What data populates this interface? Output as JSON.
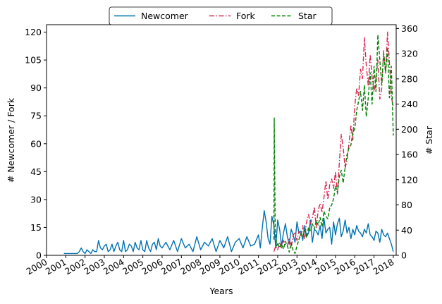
{
  "chart_data": {
    "type": "line",
    "xlabel": "Years",
    "ylabel_left": "# Newcomer / Fork",
    "ylabel_right": "# Star",
    "x_ticks": [
      "2000",
      "2001",
      "2002",
      "2003",
      "2004",
      "2005",
      "2006",
      "2007",
      "2008",
      "2009",
      "2010",
      "2011",
      "2012",
      "2013",
      "2014",
      "2015",
      "2016",
      "2017",
      "2018"
    ],
    "x_range": [
      2000,
      2018.15
    ],
    "ylim_left": [
      0,
      124
    ],
    "yticks_left": [
      0,
      15,
      30,
      45,
      60,
      75,
      90,
      105,
      120
    ],
    "ylim_right": [
      0,
      366
    ],
    "yticks_right": [
      0,
      40,
      80,
      120,
      160,
      200,
      240,
      280,
      320,
      360
    ],
    "legend_position": "top-center",
    "grid": false,
    "series": [
      {
        "name": "Newcomer",
        "axis": "left",
        "color": "#0072b2",
        "style": "solid",
        "x": [
          2000.9,
          2001.0,
          2001.2,
          2001.4,
          2001.6,
          2001.7,
          2001.8,
          2001.9,
          2002.0,
          2002.1,
          2002.2,
          2002.3,
          2002.4,
          2002.5,
          2002.6,
          2002.7,
          2002.8,
          2002.9,
          2003.0,
          2003.1,
          2003.2,
          2003.3,
          2003.4,
          2003.5,
          2003.6,
          2003.7,
          2003.8,
          2003.9,
          2004.0,
          2004.1,
          2004.2,
          2004.3,
          2004.4,
          2004.5,
          2004.6,
          2004.7,
          2004.8,
          2004.9,
          2005.0,
          2005.1,
          2005.2,
          2005.3,
          2005.4,
          2005.5,
          2005.6,
          2005.7,
          2005.8,
          2005.9,
          2006.0,
          2006.2,
          2006.4,
          2006.6,
          2006.8,
          2007.0,
          2007.2,
          2007.4,
          2007.6,
          2007.8,
          2008.0,
          2008.2,
          2008.4,
          2008.6,
          2008.8,
          2009.0,
          2009.2,
          2009.4,
          2009.6,
          2009.8,
          2010.0,
          2010.2,
          2010.4,
          2010.6,
          2010.8,
          2011.0,
          2011.1,
          2011.2,
          2011.3,
          2011.4,
          2011.5,
          2011.6,
          2011.7,
          2011.8,
          2011.9,
          2012.0,
          2012.1,
          2012.2,
          2012.3,
          2012.4,
          2012.5,
          2012.6,
          2012.7,
          2012.8,
          2012.9,
          2013.0,
          2013.1,
          2013.2,
          2013.3,
          2013.4,
          2013.5,
          2013.6,
          2013.7,
          2013.8,
          2013.9,
          2014.0,
          2014.1,
          2014.2,
          2014.3,
          2014.4,
          2014.5,
          2014.6,
          2014.7,
          2014.8,
          2014.9,
          2015.0,
          2015.1,
          2015.2,
          2015.3,
          2015.4,
          2015.5,
          2015.6,
          2015.7,
          2015.8,
          2015.9,
          2016.0,
          2016.1,
          2016.2,
          2016.3,
          2016.4,
          2016.5,
          2016.6,
          2016.7,
          2016.8,
          2016.9,
          2017.0,
          2017.1,
          2017.2,
          2017.3,
          2017.4,
          2017.5,
          2017.6,
          2017.7,
          2017.8,
          2017.9,
          2018.0
        ],
        "y": [
          1,
          1,
          1,
          1,
          1,
          2,
          4,
          2,
          1,
          3,
          2,
          1,
          3,
          2,
          2,
          8,
          4,
          3,
          5,
          6,
          2,
          3,
          6,
          2,
          5,
          7,
          3,
          2,
          8,
          2,
          3,
          6,
          5,
          2,
          7,
          4,
          3,
          8,
          3,
          2,
          8,
          4,
          2,
          6,
          7,
          3,
          9,
          5,
          4,
          7,
          3,
          8,
          2,
          9,
          4,
          6,
          2,
          10,
          3,
          7,
          5,
          9,
          2,
          8,
          4,
          10,
          2,
          7,
          9,
          4,
          10,
          5,
          6,
          11,
          4,
          15,
          24,
          18,
          9,
          6,
          21,
          16,
          4,
          19,
          14,
          5,
          12,
          17,
          10,
          6,
          14,
          11,
          7,
          18,
          12,
          13,
          8,
          16,
          10,
          12,
          19,
          7,
          14,
          13,
          11,
          16,
          9,
          20,
          12,
          14,
          15,
          6,
          18,
          11,
          17,
          20,
          10,
          13,
          19,
          12,
          15,
          9,
          14,
          11,
          16,
          13,
          12,
          10,
          14,
          12,
          17,
          11,
          10,
          8,
          13,
          12,
          7,
          14,
          11,
          10,
          12,
          9,
          6,
          2
        ],
        "values_note_unused": ""
      },
      {
        "name": "Fork",
        "axis": "left",
        "color": "#d62750",
        "style": "dashdot",
        "x": [
          2011.8,
          2011.9,
          2012.0,
          2012.1,
          2012.2,
          2012.3,
          2012.4,
          2012.5,
          2012.6,
          2012.7,
          2012.8,
          2012.9,
          2013.0,
          2013.1,
          2013.2,
          2013.3,
          2013.4,
          2013.5,
          2013.6,
          2013.7,
          2013.8,
          2013.9,
          2014.0,
          2014.1,
          2014.2,
          2014.3,
          2014.4,
          2014.5,
          2014.6,
          2014.7,
          2014.8,
          2014.9,
          2015.0,
          2015.1,
          2015.2,
          2015.3,
          2015.4,
          2015.5,
          2015.6,
          2015.7,
          2015.8,
          2015.9,
          2016.0,
          2016.1,
          2016.2,
          2016.3,
          2016.4,
          2016.5,
          2016.6,
          2016.7,
          2016.8,
          2016.9,
          2017.0,
          2017.1,
          2017.2,
          2017.3,
          2017.4,
          2017.5,
          2017.6,
          2017.7,
          2017.8,
          2017.9,
          2018.0
        ],
        "y": [
          2,
          5,
          3,
          7,
          4,
          8,
          6,
          5,
          9,
          4,
          11,
          12,
          8,
          13,
          10,
          16,
          9,
          18,
          22,
          17,
          20,
          26,
          15,
          24,
          28,
          23,
          31,
          40,
          30,
          38,
          41,
          36,
          45,
          33,
          50,
          65,
          58,
          47,
          51,
          60,
          70,
          62,
          80,
          90,
          86,
          100,
          95,
          117,
          102,
          91,
          108,
          96,
          88,
          95,
          105,
          84,
          90,
          110,
          98,
          120,
          104,
          85,
          80
        ]
      },
      {
        "name": "Star",
        "axis": "right",
        "color": "#008000",
        "style": "dashed",
        "x": [
          2011.8,
          2011.82,
          2011.87,
          2011.95,
          2012.0,
          2012.1,
          2012.2,
          2012.3,
          2012.4,
          2012.5,
          2012.6,
          2012.7,
          2012.8,
          2012.9,
          2013.0,
          2013.1,
          2013.2,
          2013.3,
          2013.4,
          2013.5,
          2013.6,
          2013.7,
          2013.8,
          2013.9,
          2014.0,
          2014.1,
          2014.2,
          2014.3,
          2014.4,
          2014.5,
          2014.6,
          2014.7,
          2014.8,
          2014.9,
          2015.0,
          2015.1,
          2015.2,
          2015.3,
          2015.4,
          2015.5,
          2015.6,
          2015.7,
          2015.8,
          2015.9,
          2016.0,
          2016.1,
          2016.2,
          2016.3,
          2016.4,
          2016.5,
          2016.6,
          2016.7,
          2016.8,
          2016.9,
          2017.0,
          2017.1,
          2017.2,
          2017.3,
          2017.4,
          2017.5,
          2017.6,
          2017.7,
          2017.8,
          2017.9,
          2018.0
        ],
        "y": [
          25,
          218,
          40,
          15,
          20,
          12,
          18,
          10,
          22,
          15,
          5,
          20,
          8,
          3,
          15,
          25,
          35,
          30,
          40,
          28,
          45,
          38,
          50,
          42,
          55,
          48,
          60,
          45,
          70,
          62,
          58,
          75,
          80,
          90,
          110,
          100,
          125,
          135,
          115,
          140,
          160,
          170,
          175,
          195,
          200,
          230,
          245,
          260,
          230,
          270,
          220,
          250,
          290,
          240,
          300,
          260,
          350,
          310,
          270,
          320,
          290,
          330,
          250,
          300,
          190
        ]
      }
    ]
  }
}
